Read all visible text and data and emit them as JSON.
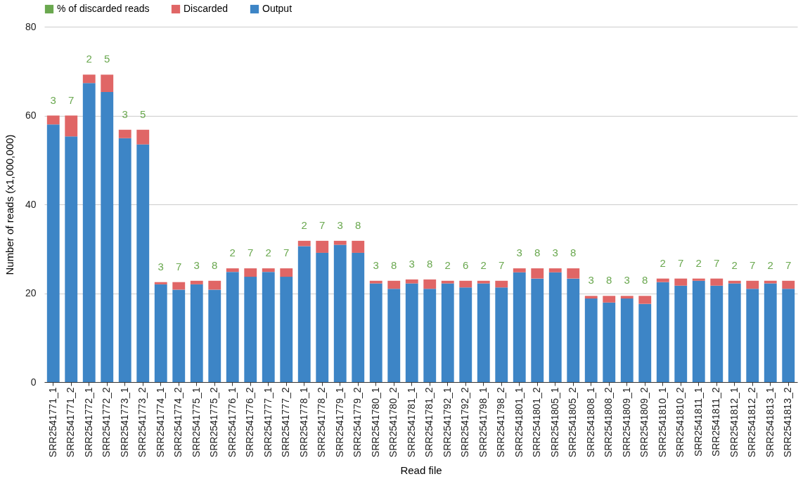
{
  "chart_data": {
    "type": "bar",
    "stacked": true,
    "xlabel": "Read file",
    "ylabel": "Number of reads (x1,000,000)",
    "categories": [
      "SRR2541771_1",
      "SRR2541771_2",
      "SRR2541772_1",
      "SRR2541772_2",
      "SRR2541773_1",
      "SRR2541773_2",
      "SRR2541774_1",
      "SRR2541774_2",
      "SRR2541775_1",
      "SRR2541775_2",
      "SRR2541776_1",
      "SRR2541776_2",
      "SRR2541777_1",
      "SRR2541777_2",
      "SRR2541778_1",
      "SRR2541778_2",
      "SRR2541779_1",
      "SRR2541779_2",
      "SRR2541780_1",
      "SRR2541780_2",
      "SRR2541781_1",
      "SRR2541781_2",
      "SRR2541792_1",
      "SRR2541792_2",
      "SRR2541798_1",
      "SRR2541798_2",
      "SRR2541801_1",
      "SRR2541801_2",
      "SRR2541805_1",
      "SRR2541805_2",
      "SRR2541808_1",
      "SRR2541808_2",
      "SRR2541809_1",
      "SRR2541809_2",
      "SRR2541810_1",
      "SRR2541810_2",
      "SRR2541811_1",
      "SRR2541811_2",
      "SRR2541812_1",
      "SRR2541812_2",
      "SRR2541813_1",
      "SRR2541813_2"
    ],
    "series": [
      {
        "name": "Output",
        "color": "#3d85c6",
        "values": [
          58.0,
          55.3,
          67.3,
          65.3,
          54.9,
          53.5,
          22.0,
          20.8,
          22.0,
          20.8,
          24.8,
          23.7,
          24.8,
          23.7,
          30.6,
          29.1,
          30.9,
          29.1,
          22.2,
          21.0,
          22.2,
          21.0,
          22.2,
          21.3,
          22.2,
          21.3,
          24.7,
          23.3,
          24.7,
          23.3,
          18.8,
          17.9,
          18.8,
          17.6,
          22.5,
          21.7,
          22.8,
          21.7,
          22.2,
          21.0,
          22.2,
          21.0
        ]
      },
      {
        "name": "Discarded",
        "color": "#e06666",
        "values": [
          2.0,
          4.7,
          1.9,
          3.9,
          1.9,
          3.3,
          0.5,
          1.7,
          0.8,
          2.0,
          0.8,
          1.9,
          0.8,
          1.9,
          1.2,
          2.7,
          0.9,
          2.7,
          0.6,
          1.8,
          0.9,
          2.1,
          0.6,
          1.5,
          0.6,
          1.5,
          0.9,
          2.3,
          0.9,
          2.3,
          0.6,
          1.5,
          0.6,
          1.8,
          0.8,
          1.6,
          0.5,
          1.6,
          0.6,
          1.8,
          0.6,
          1.8
        ]
      },
      {
        "name": "% of discarded reads",
        "color": "#6aa84f",
        "values": [
          null,
          null,
          null,
          null,
          null,
          null,
          null,
          null,
          null,
          null,
          null,
          null,
          null,
          null,
          null,
          null,
          null,
          null,
          null,
          null,
          null,
          null,
          null,
          null,
          null,
          null,
          null,
          null,
          null,
          null,
          null,
          null,
          null,
          null,
          null,
          null,
          null,
          null,
          null,
          null,
          null,
          null
        ]
      }
    ],
    "annotations": [
      {
        "text": "3",
        "x": "SRR2541771_1",
        "y": 60.0
      },
      {
        "text": "7",
        "x": "SRR2541771_2",
        "y": 60.0
      },
      {
        "text": "2",
        "x": "SRR2541772_1",
        "y": 69.2
      },
      {
        "text": "5",
        "x": "SRR2541772_2",
        "y": 69.2
      },
      {
        "text": "3",
        "x": "SRR2541773_1",
        "y": 56.8
      },
      {
        "text": "5",
        "x": "SRR2541773_2",
        "y": 56.8
      },
      {
        "text": "3",
        "x": "SRR2541774_1",
        "y": 22.5
      },
      {
        "text": "7",
        "x": "SRR2541774_2",
        "y": 22.5
      },
      {
        "text": "3",
        "x": "SRR2541775_1",
        "y": 22.8
      },
      {
        "text": "8",
        "x": "SRR2541775_2",
        "y": 22.8
      },
      {
        "text": "2",
        "x": "SRR2541776_1",
        "y": 25.6
      },
      {
        "text": "7",
        "x": "SRR2541776_2",
        "y": 25.6
      },
      {
        "text": "2",
        "x": "SRR2541777_1",
        "y": 25.6
      },
      {
        "text": "7",
        "x": "SRR2541777_2",
        "y": 25.6
      },
      {
        "text": "2",
        "x": "SRR2541778_1",
        "y": 31.8
      },
      {
        "text": "7",
        "x": "SRR2541778_2",
        "y": 31.8
      },
      {
        "text": "3",
        "x": "SRR2541779_1",
        "y": 31.8
      },
      {
        "text": "8",
        "x": "SRR2541779_2",
        "y": 31.8
      },
      {
        "text": "3",
        "x": "SRR2541780_1",
        "y": 22.8
      },
      {
        "text": "8",
        "x": "SRR2541780_2",
        "y": 22.8
      },
      {
        "text": "3",
        "x": "SRR2541781_1",
        "y": 23.1
      },
      {
        "text": "8",
        "x": "SRR2541781_2",
        "y": 23.1
      },
      {
        "text": "2",
        "x": "SRR2541792_1",
        "y": 22.8
      },
      {
        "text": "6",
        "x": "SRR2541792_2",
        "y": 22.8
      },
      {
        "text": "2",
        "x": "SRR2541798_1",
        "y": 22.8
      },
      {
        "text": "7",
        "x": "SRR2541798_2",
        "y": 22.8
      },
      {
        "text": "3",
        "x": "SRR2541801_1",
        "y": 25.6
      },
      {
        "text": "8",
        "x": "SRR2541801_2",
        "y": 25.6
      },
      {
        "text": "3",
        "x": "SRR2541805_1",
        "y": 25.6
      },
      {
        "text": "8",
        "x": "SRR2541805_2",
        "y": 25.6
      },
      {
        "text": "3",
        "x": "SRR2541808_1",
        "y": 19.4
      },
      {
        "text": "8",
        "x": "SRR2541808_2",
        "y": 19.4
      },
      {
        "text": "3",
        "x": "SRR2541809_1",
        "y": 19.4
      },
      {
        "text": "8",
        "x": "SRR2541809_2",
        "y": 19.4
      },
      {
        "text": "2",
        "x": "SRR2541810_1",
        "y": 23.3
      },
      {
        "text": "7",
        "x": "SRR2541810_2",
        "y": 23.3
      },
      {
        "text": "2",
        "x": "SRR2541811_1",
        "y": 23.3
      },
      {
        "text": "7",
        "x": "SRR2541811_2",
        "y": 23.3
      },
      {
        "text": "2",
        "x": "SRR2541812_1",
        "y": 22.8
      },
      {
        "text": "7",
        "x": "SRR2541812_2",
        "y": 22.8
      },
      {
        "text": "2",
        "x": "SRR2541813_1",
        "y": 22.8
      },
      {
        "text": "7",
        "x": "SRR2541813_2",
        "y": 22.8
      }
    ],
    "ylim": [
      0,
      80
    ],
    "yticks": [
      0,
      20,
      40,
      60,
      80
    ],
    "grid": "y",
    "legend": "top"
  }
}
